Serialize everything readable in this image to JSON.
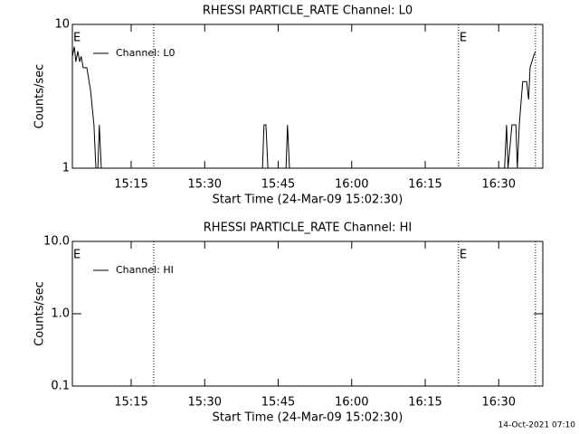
{
  "chart_data": [
    {
      "type": "line",
      "title": "RHESSI PARTICLE_RATE Channel: L0",
      "xlabel": "Start Time (24-Mar-09 15:02:30)",
      "ylabel": "Counts/sec",
      "log_y": true,
      "ylim": [
        1,
        10
      ],
      "yticks": [
        1,
        10
      ],
      "legend": "upper left",
      "xlim": [
        903,
        999
      ],
      "xticks": [
        {
          "value": 915,
          "label": "15:15"
        },
        {
          "value": 930,
          "label": "15:30"
        },
        {
          "value": 945,
          "label": "15:45"
        },
        {
          "value": 960,
          "label": "16:00"
        },
        {
          "value": 975,
          "label": "16:15"
        },
        {
          "value": 990,
          "label": "16:30"
        }
      ],
      "markers": [
        919.6,
        981.8,
        997.5
      ],
      "annotations": [
        {
          "text": "E",
          "x": 903
        },
        {
          "text": "E",
          "x": 981.8
        }
      ],
      "series": [
        {
          "name": "Channel: L0",
          "color": "#000000",
          "x": [
            903,
            903.4,
            903.7,
            904.1,
            904.5,
            904.8,
            905.2,
            905.95,
            906.7,
            907.4,
            907.8,
            908.2,
            908.5,
            908.9,
            941.8,
            942.1,
            942.5,
            942.9,
            946.6,
            946.9,
            947.3,
            991.2,
            991.6,
            991.9,
            992.7,
            993.5,
            993.8,
            994.2,
            994.6,
            994.9,
            995.7,
            996.1,
            996.4,
            997.1,
            997.5
          ],
          "values": [
            6,
            7,
            5.5,
            6.5,
            5.5,
            6,
            5,
            5,
            3.5,
            2,
            1,
            1,
            2,
            1,
            1,
            2,
            2,
            1,
            1,
            2,
            1,
            1,
            2,
            1,
            2,
            2,
            1,
            2,
            3,
            4,
            4,
            3,
            5,
            6,
            6.5
          ]
        }
      ]
    },
    {
      "type": "line",
      "title": "RHESSI PARTICLE_RATE Channel: HI",
      "xlabel": "Start Time (24-Mar-09 15:02:30)",
      "ylabel": "Counts/sec",
      "log_y": true,
      "ylim": [
        0.1,
        10
      ],
      "yticks": [
        {
          "value": 0.1,
          "label": "0.1"
        },
        {
          "value": 1,
          "label": "1.0"
        },
        {
          "value": 10,
          "label": "10.0"
        }
      ],
      "legend": "upper left",
      "xlim": [
        903,
        999
      ],
      "xticks": [
        {
          "value": 915,
          "label": "15:15"
        },
        {
          "value": 930,
          "label": "15:30"
        },
        {
          "value": 945,
          "label": "15:45"
        },
        {
          "value": 960,
          "label": "16:00"
        },
        {
          "value": 975,
          "label": "16:15"
        },
        {
          "value": 990,
          "label": "16:30"
        }
      ],
      "markers": [
        919.6,
        981.8,
        997.5
      ],
      "annotations": [
        {
          "text": "E",
          "x": 903
        },
        {
          "text": "E",
          "x": 981.8
        }
      ],
      "series": [
        {
          "name": "Channel: HI",
          "color": "#000000",
          "x": [],
          "values": []
        }
      ]
    }
  ],
  "footer": "14-Oct-2021 07:10"
}
